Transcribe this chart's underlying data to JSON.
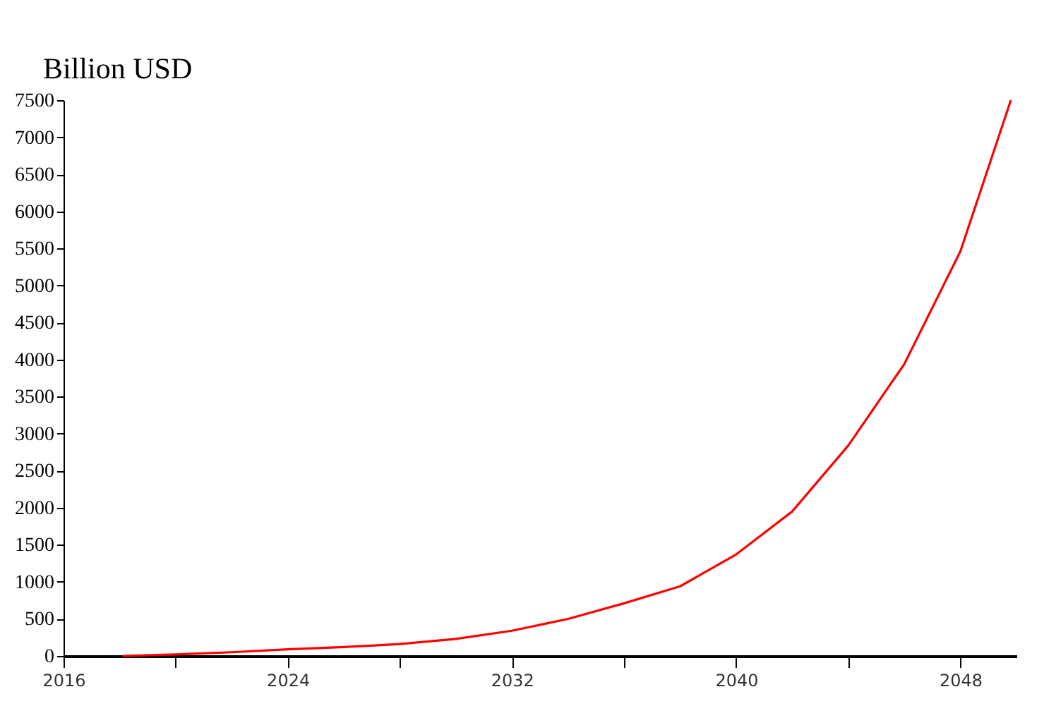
{
  "chart_data": {
    "type": "line",
    "ylabel": "Billion USD",
    "x": [
      2018.1,
      2020,
      2022,
      2024,
      2026,
      2028,
      2030,
      2032,
      2034,
      2036,
      2038,
      2040,
      2042,
      2044,
      2046,
      2048,
      2049.8
    ],
    "series": [
      {
        "color": "#ff0000",
        "values": [
          0,
          20,
          50,
          90,
          120,
          160,
          230,
          340,
          500,
          710,
          940,
          1370,
          1950,
          2840,
          3940,
          5460,
          7500
        ]
      }
    ],
    "xlim": [
      2016,
      2050
    ],
    "xticks": [
      2016,
      {
        "value": 2020,
        "label": null
      },
      2024,
      {
        "value": 2028,
        "label": null
      },
      2032,
      {
        "value": 2036,
        "label": null
      },
      2040,
      {
        "value": 2044,
        "label": null
      },
      2048
    ],
    "ylim": [
      0,
      7500
    ],
    "yticks": [
      0,
      500,
      1000,
      1500,
      2000,
      2500,
      3000,
      3500,
      4000,
      4500,
      5000,
      5500,
      6000,
      6500,
      7000,
      7500
    ],
    "grid": false,
    "marker": "none",
    "line_style": "solid"
  }
}
